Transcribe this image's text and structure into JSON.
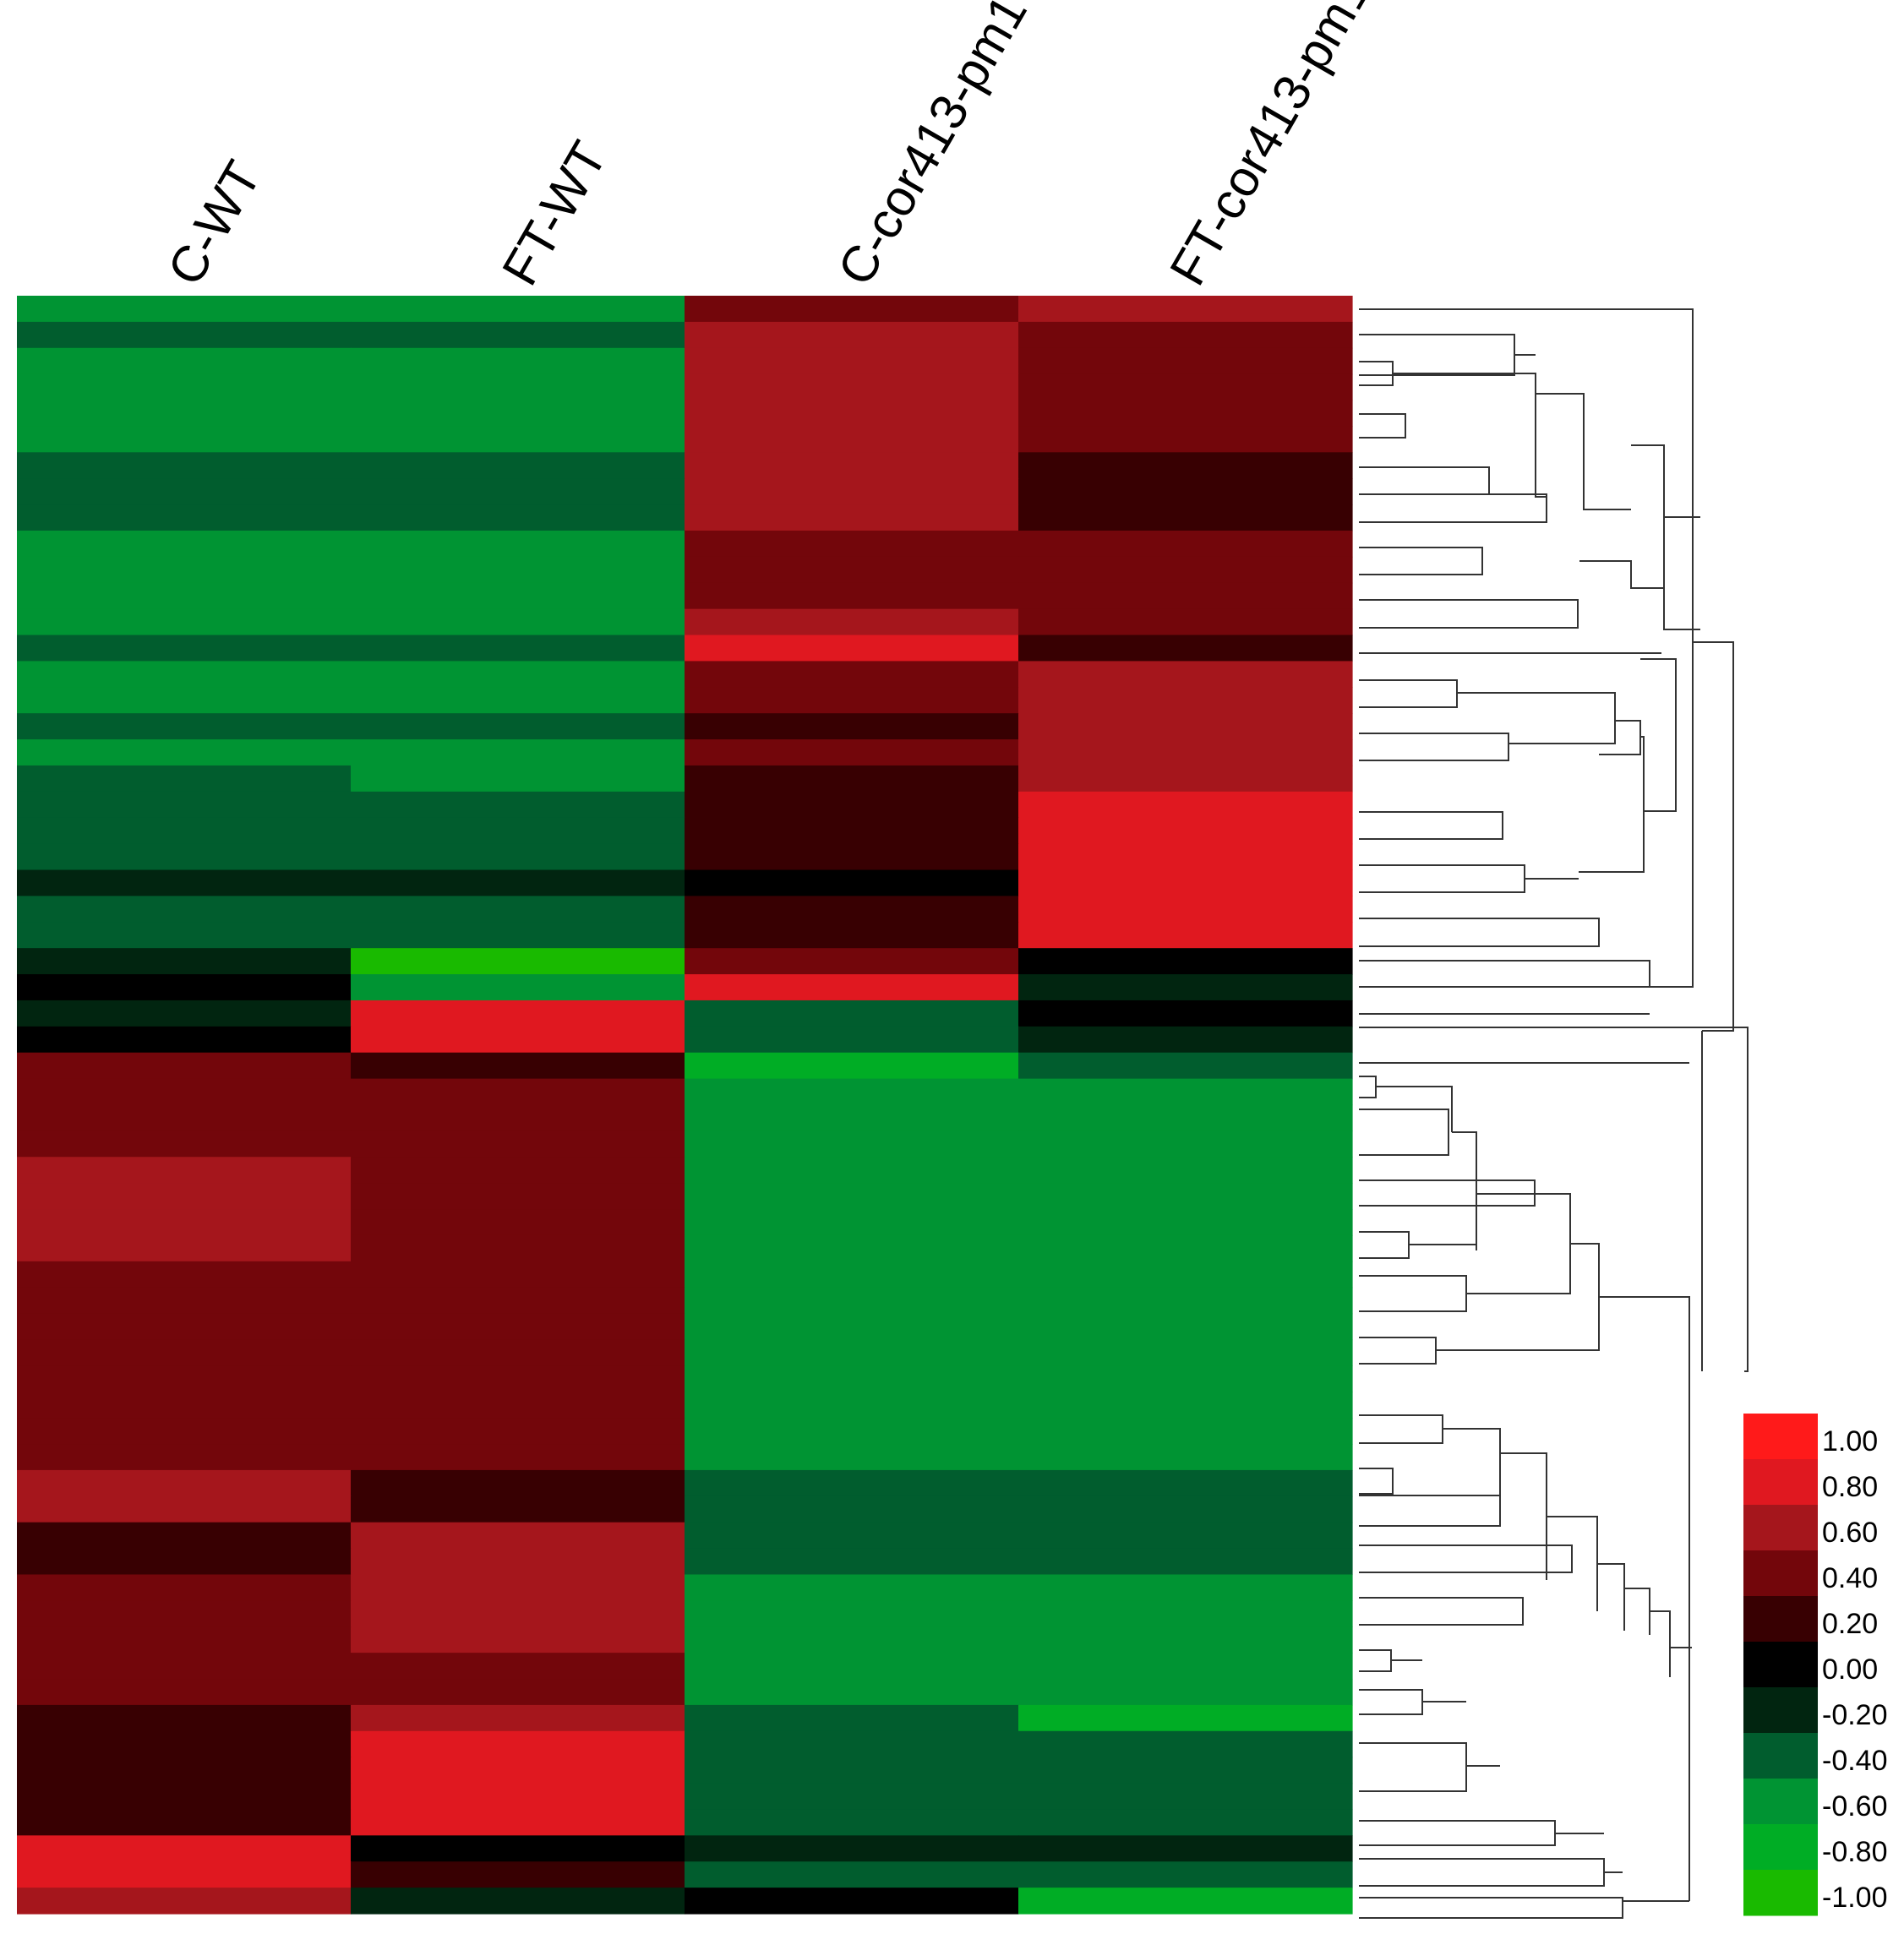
{
  "chart_data": {
    "type": "heatmap",
    "title": "",
    "columns": [
      "C-WT",
      "FT-WT",
      "C-cor413-pm1",
      "FT-cor413-pm1"
    ],
    "color_scale": {
      "min": -1.0,
      "max": 1.0,
      "ticks": [
        "1.00",
        "0.80",
        "0.60",
        "0.40",
        "0.20",
        "0.00",
        "-0.20",
        "-0.40",
        "-0.60",
        "-0.80",
        "-1.00"
      ],
      "bins": [
        {
          "value": 1.0,
          "color": "#FF1A1A"
        },
        {
          "value": 0.8,
          "color": "#E01820"
        },
        {
          "value": 0.6,
          "color": "#A5161C"
        },
        {
          "value": 0.4,
          "color": "#73060B"
        },
        {
          "value": 0.2,
          "color": "#380002"
        },
        {
          "value": 0.0,
          "color": "#000000"
        },
        {
          "value": -0.2,
          "color": "#012510"
        },
        {
          "value": -0.4,
          "color": "#015D2E"
        },
        {
          "value": -0.6,
          "color": "#009433"
        },
        {
          "value": -0.8,
          "color": "#00AD25"
        },
        {
          "value": -1.0,
          "color": "#19BA00"
        }
      ]
    },
    "rows": [
      {
        "values": [
          -0.6,
          -0.6,
          0.4,
          0.6
        ]
      },
      {
        "values": [
          -0.4,
          -0.4,
          0.6,
          0.4
        ]
      },
      {
        "values": [
          -0.6,
          -0.6,
          0.6,
          0.4
        ]
      },
      {
        "values": [
          -0.6,
          -0.6,
          0.6,
          0.4
        ]
      },
      {
        "values": [
          -0.6,
          -0.6,
          0.6,
          0.4
        ]
      },
      {
        "values": [
          -0.6,
          -0.6,
          0.6,
          0.4
        ]
      },
      {
        "values": [
          -0.4,
          -0.4,
          0.6,
          0.2
        ]
      },
      {
        "values": [
          -0.4,
          -0.4,
          0.6,
          0.2
        ]
      },
      {
        "values": [
          -0.4,
          -0.4,
          0.6,
          0.2
        ]
      },
      {
        "values": [
          -0.6,
          -0.6,
          0.4,
          0.4
        ]
      },
      {
        "values": [
          -0.6,
          -0.6,
          0.4,
          0.4
        ]
      },
      {
        "values": [
          -0.6,
          -0.6,
          0.4,
          0.4
        ]
      },
      {
        "values": [
          -0.6,
          -0.6,
          0.6,
          0.4
        ]
      },
      {
        "values": [
          -0.4,
          -0.4,
          0.8,
          0.2
        ]
      },
      {
        "values": [
          -0.6,
          -0.6,
          0.4,
          0.6
        ]
      },
      {
        "values": [
          -0.6,
          -0.6,
          0.4,
          0.6
        ]
      },
      {
        "values": [
          -0.4,
          -0.4,
          0.2,
          0.6
        ]
      },
      {
        "values": [
          -0.6,
          -0.6,
          0.4,
          0.6
        ]
      },
      {
        "values": [
          -0.4,
          -0.6,
          0.2,
          0.6
        ]
      },
      {
        "values": [
          -0.4,
          -0.4,
          0.2,
          0.8
        ]
      },
      {
        "values": [
          -0.4,
          -0.4,
          0.2,
          0.8
        ]
      },
      {
        "values": [
          -0.4,
          -0.4,
          0.2,
          0.8
        ]
      },
      {
        "values": [
          -0.2,
          -0.2,
          0.0,
          0.8
        ]
      },
      {
        "values": [
          -0.4,
          -0.4,
          0.2,
          0.8
        ]
      },
      {
        "values": [
          -0.4,
          -0.4,
          0.2,
          0.8
        ]
      },
      {
        "values": [
          -0.2,
          -1.0,
          0.4,
          0.0
        ]
      },
      {
        "values": [
          0.0,
          -0.6,
          0.8,
          -0.2
        ]
      },
      {
        "values": [
          -0.2,
          0.8,
          -0.4,
          0.0
        ]
      },
      {
        "values": [
          0.0,
          0.8,
          -0.4,
          -0.2
        ]
      },
      {
        "values": [
          0.4,
          0.2,
          -0.8,
          -0.4
        ]
      },
      {
        "values": [
          0.4,
          0.4,
          -0.6,
          -0.6
        ]
      },
      {
        "values": [
          0.4,
          0.4,
          -0.6,
          -0.6
        ]
      },
      {
        "values": [
          0.4,
          0.4,
          -0.6,
          -0.6
        ]
      },
      {
        "values": [
          0.6,
          0.4,
          -0.6,
          -0.6
        ]
      },
      {
        "values": [
          0.6,
          0.4,
          -0.6,
          -0.6
        ]
      },
      {
        "values": [
          0.6,
          0.4,
          -0.6,
          -0.6
        ]
      },
      {
        "values": [
          0.6,
          0.4,
          -0.6,
          -0.6
        ]
      },
      {
        "values": [
          0.4,
          0.4,
          -0.6,
          -0.6
        ]
      },
      {
        "values": [
          0.4,
          0.4,
          -0.6,
          -0.6
        ]
      },
      {
        "values": [
          0.4,
          0.4,
          -0.6,
          -0.6
        ]
      },
      {
        "values": [
          0.4,
          0.4,
          -0.6,
          -0.6
        ]
      },
      {
        "values": [
          0.4,
          0.4,
          -0.6,
          -0.6
        ]
      },
      {
        "values": [
          0.4,
          0.4,
          -0.6,
          -0.6
        ]
      },
      {
        "values": [
          0.4,
          0.4,
          -0.6,
          -0.6
        ]
      },
      {
        "values": [
          0.4,
          0.4,
          -0.6,
          -0.6
        ]
      },
      {
        "values": [
          0.6,
          0.2,
          -0.4,
          -0.4
        ]
      },
      {
        "values": [
          0.6,
          0.2,
          -0.4,
          -0.4
        ]
      },
      {
        "values": [
          0.2,
          0.6,
          -0.4,
          -0.4
        ]
      },
      {
        "values": [
          0.2,
          0.6,
          -0.4,
          -0.4
        ]
      },
      {
        "values": [
          0.4,
          0.6,
          -0.6,
          -0.6
        ]
      },
      {
        "values": [
          0.4,
          0.6,
          -0.6,
          -0.6
        ]
      },
      {
        "values": [
          0.4,
          0.6,
          -0.6,
          -0.6
        ]
      },
      {
        "values": [
          0.4,
          0.4,
          -0.6,
          -0.6
        ]
      },
      {
        "values": [
          0.4,
          0.4,
          -0.6,
          -0.6
        ]
      },
      {
        "values": [
          0.2,
          0.6,
          -0.4,
          -0.8
        ]
      },
      {
        "values": [
          0.2,
          0.8,
          -0.4,
          -0.4
        ]
      },
      {
        "values": [
          0.2,
          0.8,
          -0.4,
          -0.4
        ]
      },
      {
        "values": [
          0.2,
          0.8,
          -0.4,
          -0.4
        ]
      },
      {
        "values": [
          0.2,
          0.8,
          -0.4,
          -0.4
        ]
      },
      {
        "values": [
          0.8,
          0.0,
          -0.2,
          -0.2
        ]
      },
      {
        "values": [
          0.8,
          0.2,
          -0.4,
          -0.4
        ]
      },
      {
        "values": [
          0.6,
          -0.2,
          0.0,
          -0.8
        ]
      }
    ],
    "dendrogram": "row hierarchical clustering tree (right side)"
  }
}
